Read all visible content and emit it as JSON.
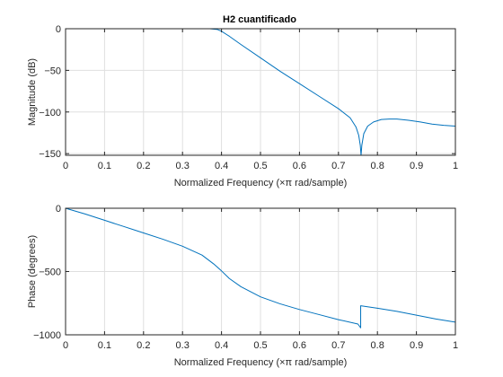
{
  "chart_data": [
    {
      "type": "line",
      "title": "H2 cuantificado",
      "xlabel": "Normalized Frequency  (×π rad/sample)",
      "ylabel": "Magnitude (dB)",
      "xlim": [
        0,
        1
      ],
      "ylim": [
        -152,
        0
      ],
      "grid": true,
      "xticks": [
        0,
        0.1,
        0.2,
        0.3,
        0.4,
        0.5,
        0.6,
        0.7,
        0.8,
        0.9,
        1
      ],
      "xtick_labels": [
        "0",
        "0.1",
        "0.2",
        "0.3",
        "0.4",
        "0.5",
        "0.6",
        "0.7",
        "0.8",
        "0.9",
        "1"
      ],
      "yticks": [
        0,
        -50,
        -100,
        -150
      ],
      "ytick_labels": [
        "0",
        "−50",
        "−100",
        "−150"
      ],
      "series": [
        {
          "color": "#0072bd",
          "x": [
            0,
            0.1,
            0.2,
            0.3,
            0.37,
            0.39,
            0.4,
            0.42,
            0.45,
            0.5,
            0.55,
            0.6,
            0.65,
            0.7,
            0.73,
            0.745,
            0.752,
            0.756,
            0.758,
            0.76,
            0.765,
            0.775,
            0.79,
            0.81,
            0.83,
            0.85,
            0.88,
            0.91,
            0.94,
            0.97,
            1.0
          ],
          "y": [
            0,
            0,
            0,
            0,
            0,
            -1,
            -3,
            -9,
            -19,
            -35,
            -51,
            -66,
            -81,
            -96,
            -107,
            -118,
            -128,
            -140,
            -152,
            -140,
            -126,
            -117,
            -112,
            -109,
            -108.5,
            -108.5,
            -110,
            -112,
            -114.5,
            -116,
            -117
          ]
        }
      ]
    },
    {
      "type": "line",
      "title": "",
      "xlabel": "Normalized Frequency  (×π rad/sample)",
      "ylabel": "Phase (degrees)",
      "xlim": [
        0,
        1
      ],
      "ylim": [
        -1000,
        0
      ],
      "grid": true,
      "xticks": [
        0,
        0.1,
        0.2,
        0.3,
        0.4,
        0.5,
        0.6,
        0.7,
        0.8,
        0.9,
        1
      ],
      "xtick_labels": [
        "0",
        "0.1",
        "0.2",
        "0.3",
        "0.4",
        "0.5",
        "0.6",
        "0.7",
        "0.8",
        "0.9",
        "1"
      ],
      "yticks": [
        0,
        -500,
        -1000
      ],
      "ytick_labels": [
        "0",
        "−500",
        "−1000"
      ],
      "series": [
        {
          "color": "#0072bd",
          "x": [
            0,
            0.05,
            0.1,
            0.15,
            0.2,
            0.25,
            0.3,
            0.35,
            0.38,
            0.4,
            0.42,
            0.45,
            0.5,
            0.55,
            0.6,
            0.65,
            0.7,
            0.75,
            0.757,
            0.757,
            0.8,
            0.85,
            0.9,
            0.95,
            1.0
          ],
          "y": [
            0,
            -45,
            -95,
            -145,
            -195,
            -245,
            -300,
            -370,
            -440,
            -495,
            -555,
            -620,
            -700,
            -755,
            -800,
            -840,
            -880,
            -915,
            -945,
            -770,
            -790,
            -815,
            -845,
            -875,
            -900
          ]
        }
      ]
    }
  ]
}
